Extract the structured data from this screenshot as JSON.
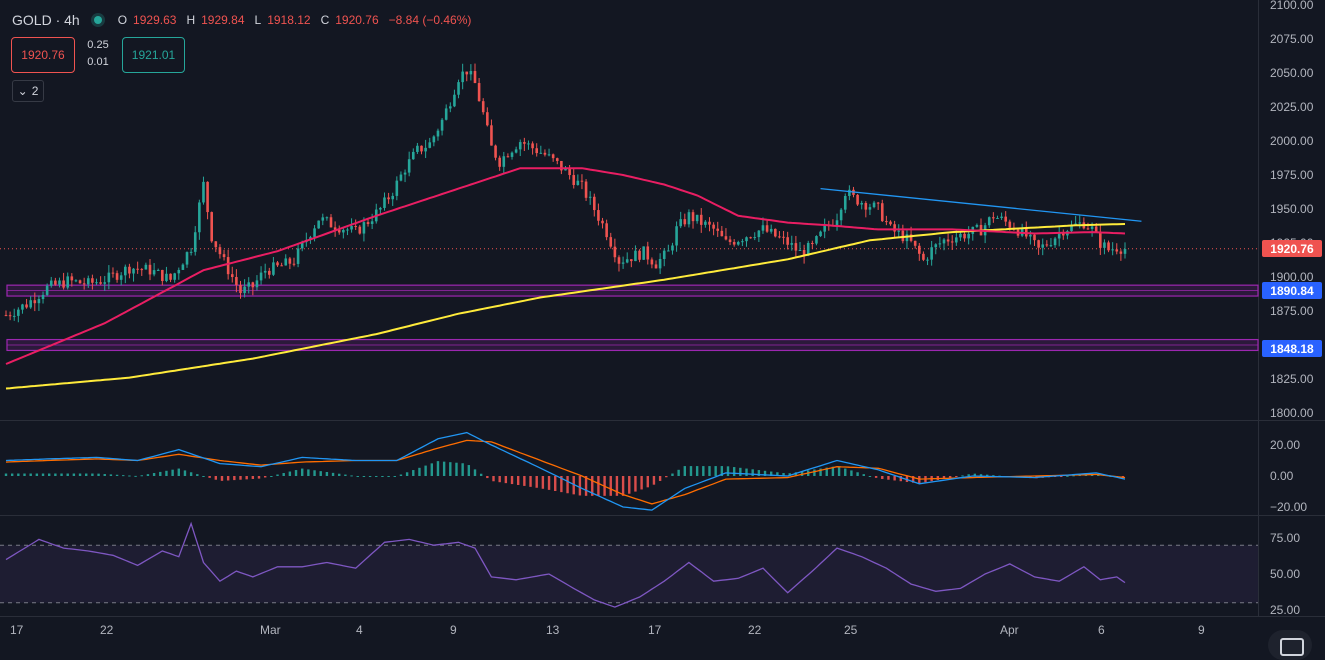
{
  "header": {
    "symbol": "GOLD · 4h",
    "o_key": "O",
    "o": "1929.63",
    "h_key": "H",
    "h": "1929.84",
    "l_key": "L",
    "l": "1918.12",
    "c_key": "C",
    "c": "1920.76",
    "change": "−8.84 (−0.46%)"
  },
  "trade": {
    "sell": "1920.76",
    "spread_top": "0.25",
    "spread_bottom": "0.01",
    "buy": "1921.01"
  },
  "indicators_toggle": "2",
  "price_tags": {
    "last": "1920.76",
    "support1": "1890.84",
    "support2": "1848.18"
  },
  "colors": {
    "up": "#26a69a",
    "down": "#ef5350",
    "ema_fast": "#e91e63",
    "ema_slow": "#ffeb3b",
    "trendline": "#2196f3",
    "zone": "#9c27b0",
    "macd": "#2196f3",
    "signal": "#ff6d00",
    "rsi": "#7e57c2"
  },
  "chart_data": [
    {
      "type": "candlestick",
      "y_ticks": [
        "2100.00",
        "2075.00",
        "2050.00",
        "2025.00",
        "2000.00",
        "1975.00",
        "1950.00",
        "1925.00",
        "1900.00",
        "1875.00",
        "1850.00",
        "1825.00",
        "1800.00"
      ],
      "ylim": [
        1800,
        2100
      ],
      "x_ticks": [
        "17",
        "22",
        "Mar",
        "4",
        "9",
        "13",
        "17",
        "22",
        "25",
        "Apr",
        "6",
        "9"
      ],
      "close_path": [
        [
          0,
          1872
        ],
        [
          5,
          1880
        ],
        [
          10,
          1892
        ],
        [
          15,
          1897
        ],
        [
          20,
          1895
        ],
        [
          25,
          1899
        ],
        [
          30,
          1907
        ],
        [
          35,
          1905
        ],
        [
          40,
          1898
        ],
        [
          45,
          1922
        ],
        [
          48,
          1968
        ],
        [
          50,
          1930
        ],
        [
          53,
          1911
        ],
        [
          57,
          1889
        ],
        [
          60,
          1893
        ],
        [
          63,
          1905
        ],
        [
          66,
          1907
        ],
        [
          70,
          1912
        ],
        [
          73,
          1928
        ],
        [
          76,
          1943
        ],
        [
          79,
          1939
        ],
        [
          82,
          1936
        ],
        [
          85,
          1933
        ],
        [
          88,
          1941
        ],
        [
          91,
          1950
        ],
        [
          94,
          1963
        ],
        [
          97,
          1980
        ],
        [
          100,
          1993
        ],
        [
          103,
          1998
        ],
        [
          106,
          2015
        ],
        [
          108,
          2030
        ],
        [
          110,
          2047
        ],
        [
          112,
          2052
        ],
        [
          114,
          2042
        ],
        [
          116,
          2020
        ],
        [
          118,
          1995
        ],
        [
          120,
          1985
        ],
        [
          122,
          1992
        ],
        [
          125,
          2000
        ],
        [
          128,
          1995
        ],
        [
          131,
          1990
        ],
        [
          134,
          1983
        ],
        [
          137,
          1975
        ],
        [
          140,
          1966
        ],
        [
          143,
          1950
        ],
        [
          146,
          1933
        ],
        [
          149,
          1912
        ],
        [
          152,
          1915
        ],
        [
          155,
          1918
        ],
        [
          158,
          1910
        ],
        [
          161,
          1918
        ],
        [
          163,
          1935
        ],
        [
          166,
          1945
        ],
        [
          169,
          1940
        ],
        [
          172,
          1935
        ],
        [
          175,
          1925
        ],
        [
          178,
          1928
        ],
        [
          181,
          1932
        ],
        [
          184,
          1935
        ],
        [
          187,
          1930
        ],
        [
          190,
          1925
        ],
        [
          193,
          1918
        ],
        [
          196,
          1922
        ],
        [
          199,
          1935
        ],
        [
          202,
          1945
        ],
        [
          204,
          1963
        ],
        [
          206,
          1958
        ],
        [
          209,
          1954
        ],
        [
          212,
          1950
        ],
        [
          215,
          1935
        ],
        [
          218,
          1930
        ],
        [
          220,
          1925
        ],
        [
          223,
          1912
        ],
        [
          225,
          1920
        ],
        [
          228,
          1927
        ],
        [
          231,
          1930
        ],
        [
          234,
          1932
        ],
        [
          237,
          1935
        ],
        [
          240,
          1945
        ],
        [
          242,
          1942
        ],
        [
          245,
          1937
        ],
        [
          248,
          1930
        ],
        [
          251,
          1920
        ],
        [
          254,
          1927
        ],
        [
          257,
          1935
        ],
        [
          260,
          1938
        ],
        [
          262,
          1940
        ],
        [
          264,
          1935
        ],
        [
          266,
          1925
        ],
        [
          268,
          1920
        ],
        [
          270,
          1922
        ],
        [
          272,
          1920.76
        ]
      ],
      "ema_fast": [
        [
          0,
          1836
        ],
        [
          24,
          1866
        ],
        [
          48,
          1905
        ],
        [
          66,
          1919
        ],
        [
          90,
          1945
        ],
        [
          110,
          1965
        ],
        [
          125,
          1980
        ],
        [
          140,
          1980
        ],
        [
          150,
          1975
        ],
        [
          160,
          1968
        ],
        [
          168,
          1960
        ],
        [
          178,
          1945
        ],
        [
          190,
          1940
        ],
        [
          200,
          1938
        ],
        [
          212,
          1935
        ],
        [
          230,
          1935
        ],
        [
          250,
          1932
        ],
        [
          264,
          1933
        ],
        [
          272,
          1932
        ]
      ],
      "ema_slow": [
        [
          0,
          1818
        ],
        [
          30,
          1826
        ],
        [
          60,
          1840
        ],
        [
          90,
          1858
        ],
        [
          110,
          1873
        ],
        [
          130,
          1885
        ],
        [
          160,
          1898
        ],
        [
          190,
          1913
        ],
        [
          210,
          1927
        ],
        [
          230,
          1933
        ],
        [
          260,
          1938
        ],
        [
          272,
          1939
        ]
      ],
      "trendline": [
        [
          198,
          1965
        ],
        [
          276,
          1941
        ]
      ],
      "zones": [
        {
          "low": 1886,
          "high": 1894
        },
        {
          "low": 1846,
          "high": 1854
        }
      ]
    },
    {
      "type": "macd",
      "y_ticks": [
        "20.00",
        "0.00",
        "−20.00"
      ],
      "ylim": [
        -27,
        30
      ],
      "macd": [
        [
          0,
          10
        ],
        [
          10,
          11
        ],
        [
          22,
          12
        ],
        [
          32,
          10
        ],
        [
          42,
          17
        ],
        [
          52,
          8
        ],
        [
          62,
          6
        ],
        [
          72,
          12
        ],
        [
          85,
          10
        ],
        [
          95,
          10
        ],
        [
          105,
          24
        ],
        [
          112,
          28
        ],
        [
          118,
          20
        ],
        [
          130,
          5
        ],
        [
          140,
          -8
        ],
        [
          150,
          -20
        ],
        [
          157,
          -22
        ],
        [
          165,
          -8
        ],
        [
          175,
          2
        ],
        [
          190,
          0
        ],
        [
          202,
          10
        ],
        [
          212,
          4
        ],
        [
          222,
          -5
        ],
        [
          235,
          0
        ],
        [
          250,
          -1
        ],
        [
          265,
          2
        ],
        [
          272,
          -2
        ]
      ],
      "signal": [
        [
          0,
          9
        ],
        [
          10,
          10
        ],
        [
          22,
          11
        ],
        [
          32,
          10
        ],
        [
          42,
          14
        ],
        [
          52,
          10
        ],
        [
          62,
          7
        ],
        [
          72,
          9
        ],
        [
          85,
          10
        ],
        [
          95,
          10
        ],
        [
          105,
          18
        ],
        [
          112,
          23
        ],
        [
          118,
          22
        ],
        [
          130,
          10
        ],
        [
          140,
          0
        ],
        [
          150,
          -12
        ],
        [
          157,
          -18
        ],
        [
          165,
          -12
        ],
        [
          175,
          -2
        ],
        [
          190,
          -1
        ],
        [
          202,
          6
        ],
        [
          212,
          5
        ],
        [
          222,
          -2
        ],
        [
          235,
          -1
        ],
        [
          250,
          0
        ],
        [
          265,
          1
        ],
        [
          272,
          -1
        ]
      ]
    },
    {
      "type": "rsi",
      "y_ticks": [
        "75.00",
        "50.00",
        "25.00"
      ],
      "ylim": [
        20,
        80
      ],
      "bands": [
        30,
        70
      ],
      "rsi": [
        [
          0,
          60
        ],
        [
          8,
          74
        ],
        [
          14,
          68
        ],
        [
          20,
          66
        ],
        [
          26,
          63
        ],
        [
          32,
          56
        ],
        [
          38,
          66
        ],
        [
          42,
          62
        ],
        [
          45,
          85
        ],
        [
          48,
          58
        ],
        [
          52,
          45
        ],
        [
          56,
          52
        ],
        [
          60,
          48
        ],
        [
          66,
          55
        ],
        [
          72,
          55
        ],
        [
          78,
          58
        ],
        [
          85,
          54
        ],
        [
          92,
          72
        ],
        [
          98,
          74
        ],
        [
          104,
          70
        ],
        [
          110,
          72
        ],
        [
          114,
          68
        ],
        [
          118,
          48
        ],
        [
          124,
          46
        ],
        [
          132,
          50
        ],
        [
          138,
          40
        ],
        [
          143,
          32
        ],
        [
          148,
          27
        ],
        [
          154,
          34
        ],
        [
          160,
          45
        ],
        [
          166,
          58
        ],
        [
          172,
          45
        ],
        [
          178,
          47
        ],
        [
          184,
          54
        ],
        [
          190,
          37
        ],
        [
          196,
          52
        ],
        [
          202,
          68
        ],
        [
          208,
          62
        ],
        [
          214,
          54
        ],
        [
          220,
          43
        ],
        [
          226,
          38
        ],
        [
          232,
          40
        ],
        [
          238,
          50
        ],
        [
          244,
          57
        ],
        [
          250,
          48
        ],
        [
          256,
          45
        ],
        [
          262,
          55
        ],
        [
          266,
          46
        ],
        [
          270,
          48
        ],
        [
          272,
          44
        ]
      ]
    }
  ]
}
